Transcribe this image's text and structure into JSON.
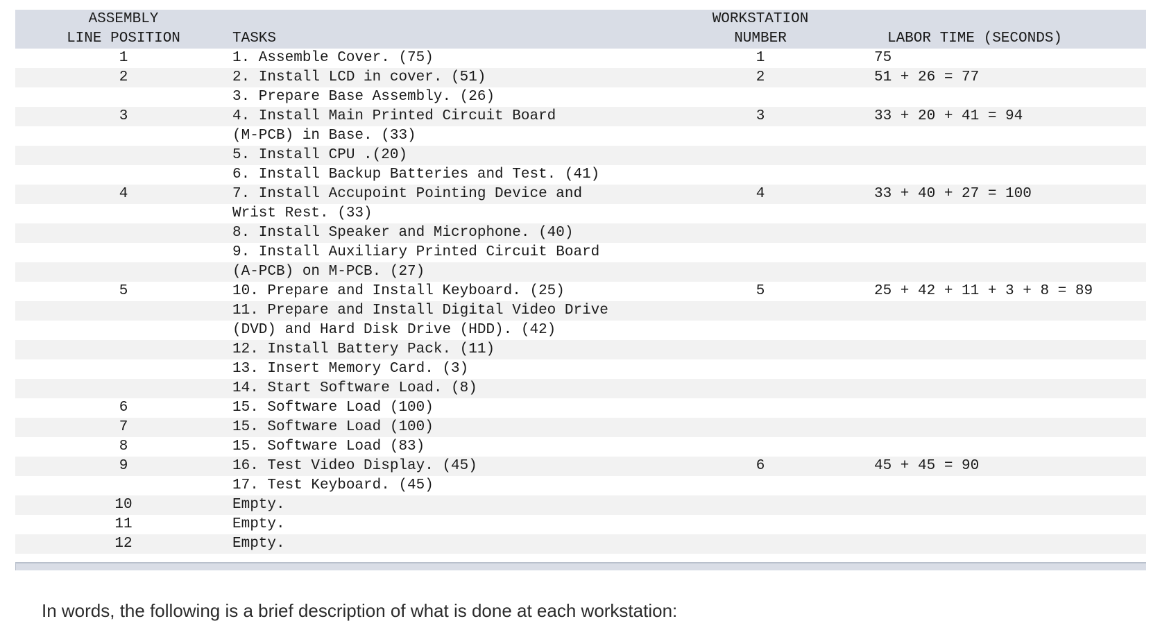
{
  "table": {
    "headers": {
      "position": "ASSEMBLY\nLINE POSITION",
      "tasks": "TASKS",
      "workstation": "WORKSTATION\nNUMBER",
      "labor": "LABOR TIME (SECONDS)"
    },
    "rows": [
      {
        "pos": "1",
        "task": "1. Assemble Cover. (75)",
        "ws": "1",
        "labor": "75"
      },
      {
        "pos": "2",
        "task": "2. Install LCD in cover. (51)",
        "ws": "2",
        "labor": "51 + 26 = 77"
      },
      {
        "pos": "",
        "task": "3. Prepare Base Assembly. (26)",
        "ws": "",
        "labor": ""
      },
      {
        "pos": "3",
        "task": "4. Install Main Printed Circuit Board",
        "ws": "3",
        "labor": "33 + 20 + 41 = 94"
      },
      {
        "pos": "",
        "task": "(M-PCB) in Base. (33)",
        "ws": "",
        "labor": ""
      },
      {
        "pos": "",
        "task": "5. Install CPU .(20)",
        "ws": "",
        "labor": ""
      },
      {
        "pos": "",
        "task": "6. Install Backup Batteries and Test. (41)",
        "ws": "",
        "labor": ""
      },
      {
        "pos": "4",
        "task": "7. Install Accupoint Pointing Device and",
        "ws": "4",
        "labor": "33 + 40 + 27 = 100"
      },
      {
        "pos": "",
        "task": "Wrist Rest. (33)",
        "ws": "",
        "labor": ""
      },
      {
        "pos": "",
        "task": "8. Install Speaker and Microphone. (40)",
        "ws": "",
        "labor": ""
      },
      {
        "pos": "",
        "task": "9. Install Auxiliary Printed Circuit Board",
        "ws": "",
        "labor": ""
      },
      {
        "pos": "",
        "task": "(A-PCB) on M-PCB. (27)",
        "ws": "",
        "labor": ""
      },
      {
        "pos": "5",
        "task": "10. Prepare and Install Keyboard. (25)",
        "ws": "5",
        "labor": "25 + 42 + 11 + 3 + 8 = 89"
      },
      {
        "pos": "",
        "task": "11. Prepare and Install Digital Video Drive",
        "ws": "",
        "labor": ""
      },
      {
        "pos": "",
        "task": "(DVD) and Hard Disk Drive (HDD). (42)",
        "ws": "",
        "labor": ""
      },
      {
        "pos": "",
        "task": "12. Install Battery Pack. (11)",
        "ws": "",
        "labor": ""
      },
      {
        "pos": "",
        "task": "13. Insert Memory Card. (3)",
        "ws": "",
        "labor": ""
      },
      {
        "pos": "",
        "task": "14. Start Software Load. (8)",
        "ws": "",
        "labor": ""
      },
      {
        "pos": "6",
        "task": "15. Software Load (100)",
        "ws": "",
        "labor": ""
      },
      {
        "pos": "7",
        "task": "15. Software Load (100)",
        "ws": "",
        "labor": ""
      },
      {
        "pos": "8",
        "task": "15. Software Load (83)",
        "ws": "",
        "labor": ""
      },
      {
        "pos": "9",
        "task": "16. Test Video Display. (45)",
        "ws": "6",
        "labor": "45 + 45 = 90"
      },
      {
        "pos": "",
        "task": "17. Test Keyboard. (45)",
        "ws": "",
        "labor": ""
      },
      {
        "pos": "10",
        "task": "Empty.",
        "ws": "",
        "labor": ""
      },
      {
        "pos": "11",
        "task": "Empty.",
        "ws": "",
        "labor": ""
      },
      {
        "pos": "12",
        "task": "Empty.",
        "ws": "",
        "labor": ""
      }
    ]
  },
  "caption": "In words, the following is a brief description of what is done at each workstation:"
}
